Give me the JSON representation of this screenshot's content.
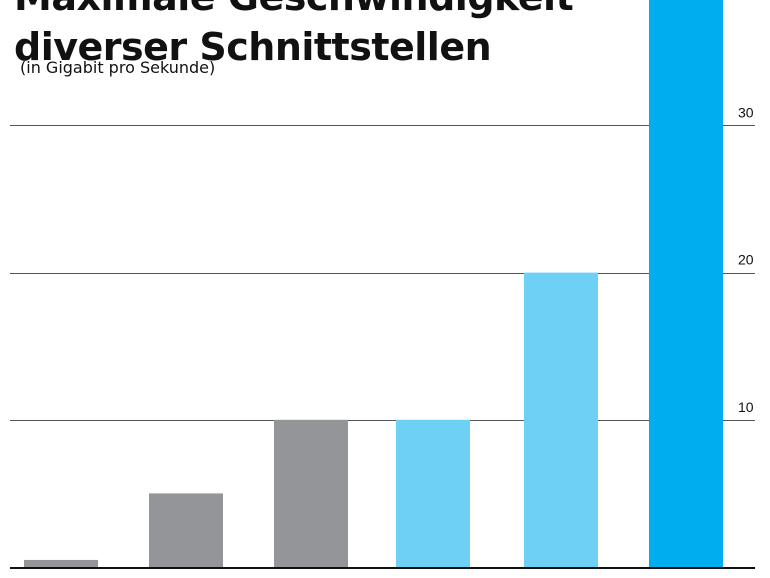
{
  "chart_data": {
    "type": "bar",
    "title_lines": [
      "Maximale Geschwindigkeit",
      "diverser Schnittstellen"
    ],
    "subtitle": "(in Gigabit pro Sekunde)",
    "xlabel": "",
    "ylabel": "",
    "ylim": [
      0,
      40
    ],
    "yticks": [
      10,
      20,
      30
    ],
    "grid": true,
    "legend": "none",
    "categories": [
      "",
      "",
      "",
      "",
      "",
      ""
    ],
    "values": [
      0.48,
      5,
      10,
      10,
      20,
      40
    ],
    "colors": [
      "#939598",
      "#939598",
      "#939598",
      "#6fd0f5",
      "#6fd0f5",
      "#00aeef"
    ]
  }
}
